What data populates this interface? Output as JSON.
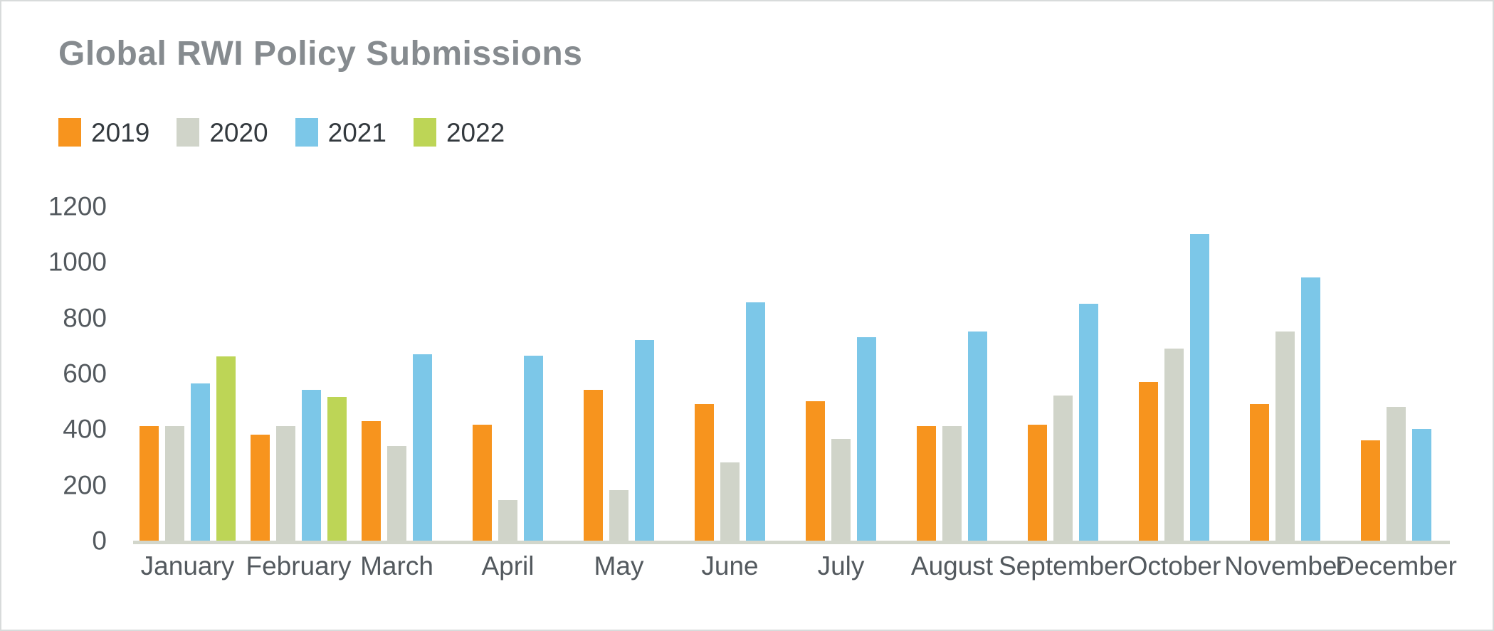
{
  "page": {
    "background": "#FFFFFF",
    "border_color": "#D8DBDB"
  },
  "header": {
    "title": "Global RWI Policy Submissions",
    "title_color": "#868B8F"
  },
  "chart_data": {
    "type": "bar",
    "title": "Global RWI Policy Submissions",
    "categories": [
      "January",
      "February",
      "March",
      "April",
      "May",
      "June",
      "July",
      "August",
      "September",
      "October",
      "November",
      "December"
    ],
    "series": [
      {
        "name": "2019",
        "color": "#F7941E",
        "values": [
          410,
          380,
          430,
          415,
          540,
          490,
          500,
          410,
          415,
          570,
          490,
          360
        ]
      },
      {
        "name": "2020",
        "color": "#D0D4C9",
        "values": [
          410,
          410,
          340,
          145,
          180,
          280,
          365,
          410,
          520,
          690,
          750,
          480
        ]
      },
      {
        "name": "2021",
        "color": "#7CC7E8",
        "values": [
          565,
          540,
          670,
          665,
          720,
          855,
          730,
          750,
          850,
          1100,
          945,
          400
        ]
      },
      {
        "name": "2022",
        "color": "#BDD556",
        "values": [
          660,
          515,
          null,
          null,
          null,
          null,
          null,
          null,
          null,
          null,
          null,
          null
        ]
      }
    ],
    "xlabel": "",
    "ylabel": "",
    "ylim": [
      0,
      1200
    ],
    "yticks": [
      0,
      200,
      400,
      600,
      800,
      1000,
      1200
    ],
    "grid": false,
    "legend_position": "top-left",
    "axis_text_color": "#53595E",
    "legend_text_color": "#33393E",
    "baseline_color": "#D2D6CB"
  }
}
